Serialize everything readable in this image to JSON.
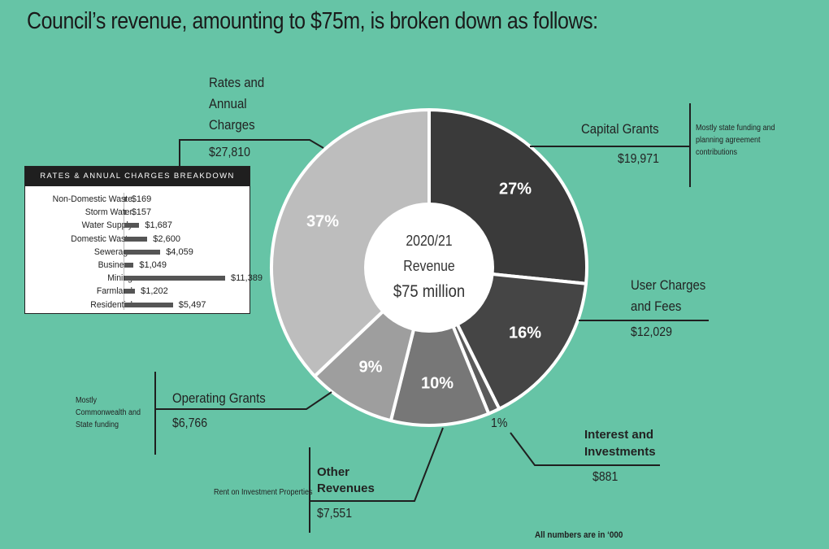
{
  "title": "Council’s revenue, amounting to $75m, is broken down as follows:",
  "footnote": "All numbers are in ‘000",
  "center": {
    "year": "2020/21",
    "label": "Revenue",
    "amount": "$75 million"
  },
  "colors": {
    "background": "#66c4a6"
  },
  "chart_data": [
    {
      "type": "pie",
      "variant": "donut",
      "unit": "$'000",
      "slices": [
        {
          "key": "capital",
          "name": "Capital Grants",
          "value": 19971,
          "value_label": "$19,971",
          "pct_label": "27%",
          "color": "#3a3a3a",
          "note": "Mostly state funding and planning agreement contributions"
        },
        {
          "key": "user",
          "name": "User Charges and Fees",
          "value": 12029,
          "value_label": "$12,029",
          "pct_label": "16%",
          "color": "#454545"
        },
        {
          "key": "interest",
          "name": "Interest and Investments",
          "value": 881,
          "value_label": "$881",
          "pct_label": "1%",
          "color": "#5a5a5a"
        },
        {
          "key": "other",
          "name": "Other Revenues",
          "value": 7551,
          "value_label": "$7,551",
          "pct_label": "10%",
          "color": "#777777",
          "note": "Rent on Investment Properties"
        },
        {
          "key": "operating",
          "name": "Operating Grants",
          "value": 6766,
          "value_label": "$6,766",
          "pct_label": "9%",
          "color": "#9e9e9e",
          "note": "Mostly Commonwealth and State funding"
        },
        {
          "key": "rates",
          "name": "Rates and Annual Charges",
          "value": 27810,
          "value_label": "$27,810",
          "pct_label": "37%",
          "color": "#bdbdbd"
        }
      ]
    },
    {
      "type": "bar",
      "orientation": "horizontal",
      "title": "RATES & ANNUAL CHARGES BREAKDOWN",
      "categories": [
        "Non-Domestic Waste",
        "Storm Water",
        "Water Supply",
        "Domestic Waste",
        "Sewerage",
        "Business",
        "Mining",
        "Farmland",
        "Residential"
      ],
      "values": [
        169,
        157,
        1687,
        2600,
        4059,
        1049,
        11389,
        1202,
        5497
      ],
      "value_labels": [
        "$169",
        "$157",
        "$1,687",
        "$2,600",
        "$4,059",
        "$1,049",
        "$11,389",
        "$1,202",
        "$5,497"
      ],
      "xlim": [
        0,
        11389
      ]
    }
  ],
  "labels": {
    "capital": {
      "line1": "Capital Grants",
      "note": "Mostly state funding and planning agreement contributions"
    },
    "user": {
      "line1": "User Charges",
      "line2": "and Fees"
    },
    "interest": {
      "line1": "Interest and",
      "line2": "Investments"
    },
    "other": {
      "line1": "Other",
      "line2": "Revenues",
      "note": "Rent on Investment Properties"
    },
    "operating": {
      "line1": "Operating Grants",
      "note": "Mostly Commonwealth and State funding"
    },
    "rates": {
      "line1": "Rates and",
      "line2": "Annual",
      "line3": "Charges"
    }
  }
}
